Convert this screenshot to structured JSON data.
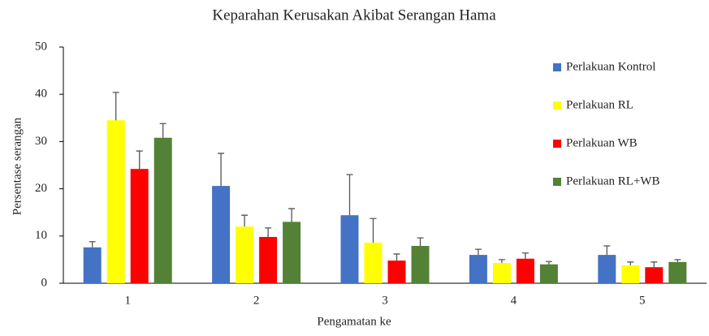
{
  "chart_data": {
    "type": "bar",
    "title": "Keparahan Kerusakan Akibat Serangan Hama",
    "x_label": "Pengamatan ke",
    "y_label": "Persentase serangan",
    "categories": [
      "1",
      "2",
      "3",
      "4",
      "5"
    ],
    "series": [
      {
        "name": "Perlakuan Kontrol",
        "color": "#4472c4",
        "values": [
          7.6,
          20.6,
          14.4,
          6,
          6
        ],
        "errors": [
          1.2,
          6.9,
          8.6,
          1.2,
          1.9
        ]
      },
      {
        "name": "Perlakuan RL",
        "color": "#ffff00",
        "values": [
          34.5,
          12,
          8.6,
          4.3,
          3.8
        ],
        "errors": [
          5.9,
          2.4,
          5.1,
          0.7,
          0.7
        ]
      },
      {
        "name": "Perlakuan WB",
        "color": "#ff0000",
        "values": [
          24.2,
          9.8,
          4.8,
          5.2,
          3.4
        ],
        "errors": [
          3.8,
          1.9,
          1.4,
          1.2,
          1.1
        ]
      },
      {
        "name": "Perlakuan RL+WB",
        "color": "#538135",
        "values": [
          30.8,
          13,
          7.9,
          4,
          4.5
        ],
        "errors": [
          3,
          2.8,
          1.7,
          0.6,
          0.5
        ]
      }
    ],
    "ylim": [
      0,
      50
    ],
    "yticks": [
      0,
      10,
      20,
      30,
      40,
      50
    ],
    "legend": "right"
  }
}
